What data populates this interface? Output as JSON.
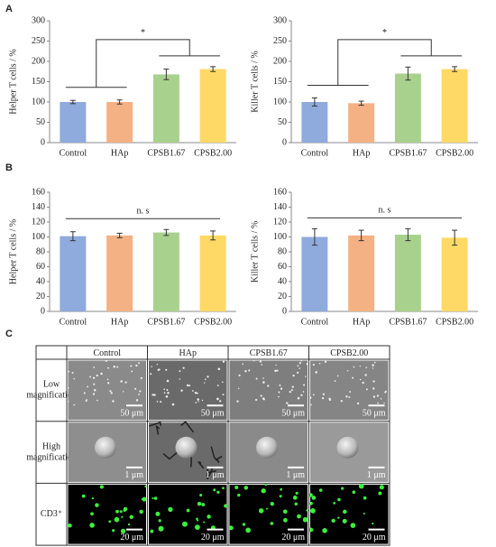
{
  "panel_labels": [
    "A",
    "B",
    "C"
  ],
  "chart_data": [
    {
      "type": "bar",
      "ylabel": "Helper T cells / %",
      "categories": [
        "Control",
        "HAp",
        "CPSB1.67",
        "CPSB2.00"
      ],
      "values": [
        100,
        100,
        168,
        181
      ],
      "errors": [
        4,
        5,
        13,
        6
      ],
      "colors": [
        "#8faadc",
        "#f4b183",
        "#a9d18e",
        "#ffd966"
      ],
      "ylim": [
        0,
        300
      ],
      "yticks": [
        0,
        50,
        100,
        150,
        200,
        250,
        300
      ],
      "annotation": "*",
      "bracket": "groups"
    },
    {
      "type": "bar",
      "ylabel": "Killer T cells / %",
      "categories": [
        "Control",
        "HAp",
        "CPSB1.67",
        "CPSB2.00"
      ],
      "values": [
        100,
        97,
        170,
        181
      ],
      "errors": [
        10,
        5,
        16,
        6
      ],
      "colors": [
        "#8faadc",
        "#f4b183",
        "#a9d18e",
        "#ffd966"
      ],
      "ylim": [
        0,
        300
      ],
      "yticks": [
        0,
        50,
        100,
        150,
        200,
        250,
        300
      ],
      "annotation": "*",
      "bracket": "groups"
    },
    {
      "type": "bar",
      "ylabel": "Helper T cells / %",
      "categories": [
        "Control",
        "HAp",
        "CPSB1.67",
        "CPSB2.00"
      ],
      "values": [
        101,
        102,
        106,
        102
      ],
      "errors": [
        6,
        3,
        4,
        6
      ],
      "colors": [
        "#8faadc",
        "#f4b183",
        "#a9d18e",
        "#ffd966"
      ],
      "ylim": [
        0,
        160
      ],
      "yticks": [
        0,
        20,
        40,
        60,
        80,
        100,
        120,
        140,
        160
      ],
      "annotation": "n. s",
      "bracket": "all"
    },
    {
      "type": "bar",
      "ylabel": "Killer T cells / %",
      "categories": [
        "Control",
        "HAp",
        "CPSB1.67",
        "CPSB2.00"
      ],
      "values": [
        100,
        102,
        103,
        99
      ],
      "errors": [
        11,
        7,
        8,
        10
      ],
      "colors": [
        "#8faadc",
        "#f4b183",
        "#a9d18e",
        "#ffd966"
      ],
      "ylim": [
        0,
        160
      ],
      "yticks": [
        0,
        20,
        40,
        60,
        80,
        100,
        120,
        140,
        160
      ],
      "annotation": "n. s",
      "bracket": "all"
    }
  ],
  "image_grid": {
    "columns": [
      "Control",
      "HAp",
      "CPSB1.67",
      "CPSB2.00"
    ],
    "rows": [
      {
        "label": [
          "Low",
          "magnification"
        ],
        "scale_bar": "50 μm"
      },
      {
        "label": [
          "High",
          "magnification"
        ],
        "scale_bar": "1 μm"
      },
      {
        "label": [
          "CD3⁺"
        ],
        "scale_bar": "20 μm"
      }
    ]
  }
}
